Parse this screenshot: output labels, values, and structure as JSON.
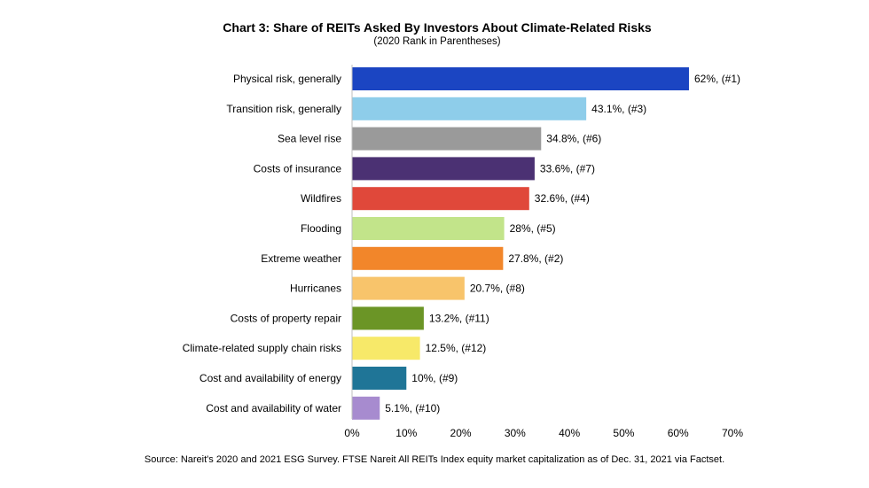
{
  "chart_data": {
    "type": "bar",
    "orientation": "horizontal",
    "title": "Chart 3: Share of REITs Asked By Investors About Climate-Related Risks",
    "subtitle": "(2020 Rank in Parentheses)",
    "xlim": [
      0,
      70
    ],
    "x_ticks": [
      0,
      10,
      20,
      30,
      40,
      50,
      60,
      70
    ],
    "x_tick_labels": [
      "0%",
      "10%",
      "20%",
      "30%",
      "40%",
      "50%",
      "60%",
      "70%"
    ],
    "grid": false,
    "legend": "none",
    "categories": [
      "Physical risk, generally",
      "Transition risk, generally",
      "Sea level rise",
      "Costs of insurance",
      "Wildfires",
      "Flooding",
      "Extreme weather",
      "Hurricanes",
      "Costs of property repair",
      "Climate-related supply chain risks",
      "Cost and availability of energy",
      "Cost and availability of water"
    ],
    "values": [
      62,
      43.1,
      34.8,
      33.6,
      32.6,
      28,
      27.8,
      20.7,
      13.2,
      12.5,
      10,
      5.1
    ],
    "data_labels": [
      "62%, (#1)",
      "43.1%, (#3)",
      "34.8%, (#6)",
      "33.6%, (#7)",
      "32.6%, (#4)",
      "28%, (#5)",
      "27.8%, (#2)",
      "20.7%, (#8)",
      "13.2%, (#11)",
      "12.5%, (#12)",
      "10%, (#9)",
      "5.1%, (#10)"
    ],
    "colors": [
      "#1b45c2",
      "#8ecdea",
      "#9a9a9a",
      "#4b3173",
      "#e0483a",
      "#c2e48a",
      "#f2862a",
      "#f8c46b",
      "#6b9526",
      "#f7e969",
      "#1f7597",
      "#a78bcf"
    ]
  },
  "source": "Source: Nareit's 2020 and 2021 ESG Survey. FTSE Nareit All REITs Index equity market capitalization as of Dec. 31, 2021 via Factset."
}
